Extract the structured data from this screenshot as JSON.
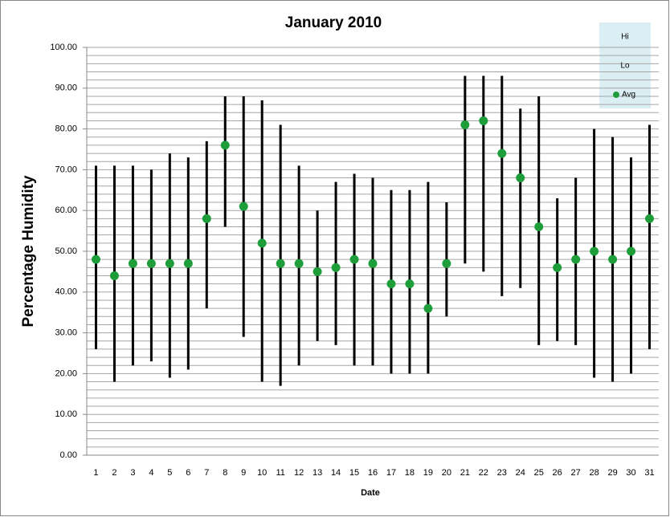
{
  "chart_data": {
    "type": "hi-lo-avg",
    "title": "January 2010",
    "x_label": "Date",
    "y_label": "Percentage Humidity",
    "categories": [
      "1",
      "2",
      "3",
      "4",
      "5",
      "6",
      "7",
      "8",
      "9",
      "10",
      "11",
      "12",
      "13",
      "14",
      "15",
      "16",
      "17",
      "18",
      "19",
      "20",
      "21",
      "22",
      "23",
      "24",
      "25",
      "26",
      "27",
      "28",
      "29",
      "30",
      "31"
    ],
    "series": [
      {
        "name": "Hi",
        "color": "#000000",
        "values": [
          71,
          71,
          71,
          70,
          74,
          73,
          77,
          88,
          88,
          87,
          81,
          71,
          60,
          67,
          69,
          68,
          65,
          65,
          67,
          62,
          93,
          93,
          93,
          85,
          88,
          63,
          68,
          80,
          78,
          73,
          81
        ]
      },
      {
        "name": "Lo",
        "color": "#000000",
        "values": [
          26,
          18,
          22,
          23,
          19,
          21,
          36,
          56,
          29,
          18,
          17,
          22,
          28,
          27,
          22,
          22,
          20,
          20,
          20,
          34,
          47,
          45,
          39,
          41,
          27,
          28,
          27,
          19,
          18,
          20,
          26
        ]
      },
      {
        "name": "Avg",
        "color": "#1e9e3a",
        "values": [
          48,
          44,
          47,
          47,
          47,
          47,
          58,
          76,
          61,
          52,
          47,
          47,
          45,
          46,
          48,
          47,
          42,
          42,
          36,
          47,
          81,
          82,
          74,
          68,
          56,
          46,
          48,
          50,
          48,
          50,
          58
        ]
      }
    ],
    "ylim": [
      0,
      100
    ],
    "yticks": [
      {
        "value": 0,
        "label": "0.00"
      },
      {
        "value": 10,
        "label": "10.00"
      },
      {
        "value": 20,
        "label": "20.00"
      },
      {
        "value": 30,
        "label": "30.00"
      },
      {
        "value": 40,
        "label": "40.00"
      },
      {
        "value": 50,
        "label": "50.00"
      },
      {
        "value": 60,
        "label": "60.00"
      },
      {
        "value": 70,
        "label": "70.00"
      },
      {
        "value": 80,
        "label": "80.00"
      },
      {
        "value": 90,
        "label": "90.00"
      },
      {
        "value": 100,
        "label": "100.00"
      }
    ],
    "yminorticks": [
      0,
      2,
      4,
      6,
      8,
      10,
      12,
      14,
      16,
      18,
      20,
      22,
      24,
      26,
      28,
      30,
      32,
      34,
      36,
      38,
      40,
      42,
      44,
      46,
      48,
      50,
      52,
      54,
      56,
      58,
      60,
      62,
      64,
      66,
      68,
      70,
      72,
      74,
      76,
      78,
      80,
      82,
      84,
      86,
      88,
      90,
      92,
      94,
      96,
      98,
      100
    ],
    "grid": true,
    "legend": "top-right"
  }
}
